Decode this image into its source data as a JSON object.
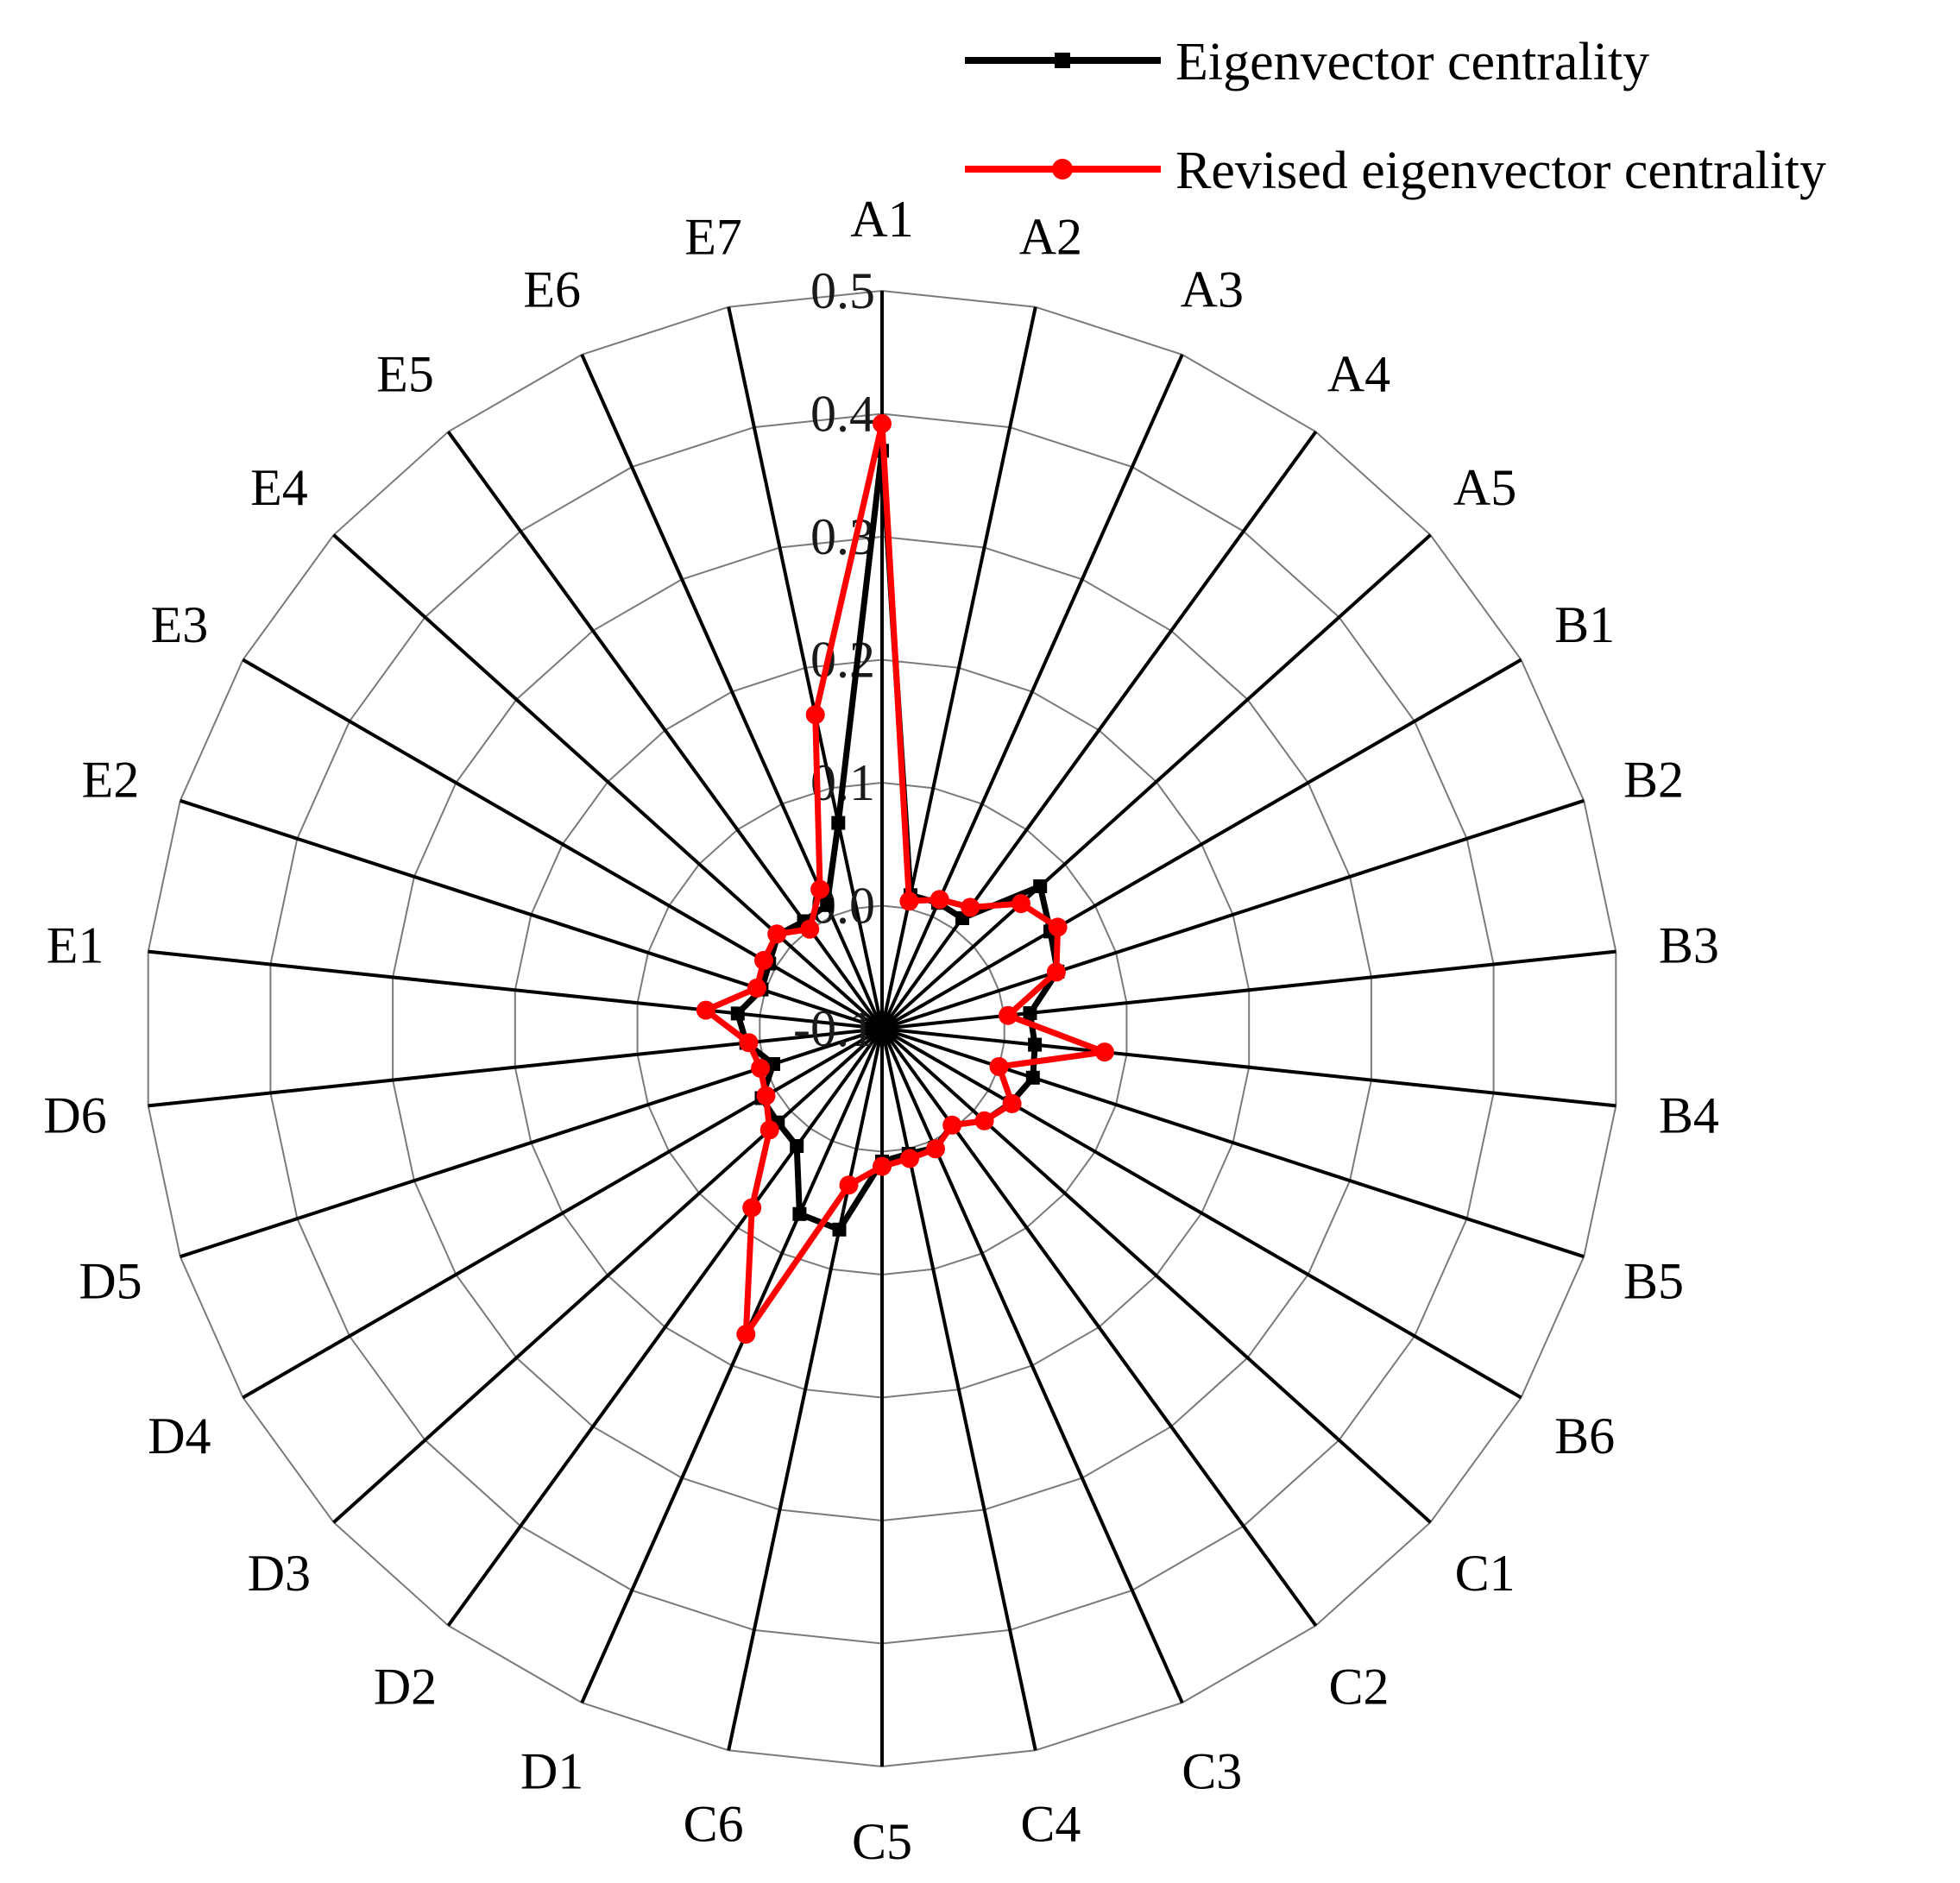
{
  "chart_data": {
    "type": "radar",
    "title": "",
    "categories": [
      "A1",
      "A2",
      "A3",
      "A4",
      "A5",
      "B1",
      "B2",
      "B3",
      "B4",
      "B5",
      "B6",
      "C1",
      "C2",
      "C3",
      "C4",
      "C5",
      "C6",
      "D1",
      "D2",
      "D3",
      "D4",
      "D5",
      "D6",
      "E1",
      "E2",
      "E3",
      "E4",
      "E5",
      "E6",
      "E7"
    ],
    "radial_ticks": [
      "-0.1",
      "0.0",
      "0.1",
      "0.2",
      "0.3",
      "0.4",
      "0.5"
    ],
    "rlim": [
      -0.1,
      0.5
    ],
    "grid": true,
    "legend_position": "top-right",
    "series": [
      {
        "name": "Eigenvector centrality",
        "color": "#000000",
        "marker": "square",
        "values": [
          0.37,
          0.011,
          0.012,
          0.011,
          0.073,
          0.058,
          0.05,
          0.021,
          0.025,
          0.029,
          0.021,
          0.012,
          -0.003,
          0.006,
          0.004,
          0.008,
          0.067,
          0.065,
          0.018,
          0.014,
          0.013,
          -0.007,
          0.011,
          0.018,
          0.003,
          0.006,
          0.014,
          0.008,
          0.01,
          0.071
        ]
      },
      {
        "name": "Revised eigenvector centrality",
        "color": "#ff0000",
        "marker": "circle",
        "values": [
          0.392,
          0.006,
          0.015,
          0.022,
          0.052,
          0.065,
          0.049,
          0.003,
          0.082,
          0.0,
          0.022,
          0.012,
          -0.003,
          0.007,
          0.008,
          0.012,
          0.03,
          0.172,
          0.08,
          0.023,
          0.009,
          0.004,
          0.009,
          0.044,
          0.007,
          0.011,
          0.015,
          0.0,
          0.024,
          0.161
        ]
      }
    ]
  }
}
